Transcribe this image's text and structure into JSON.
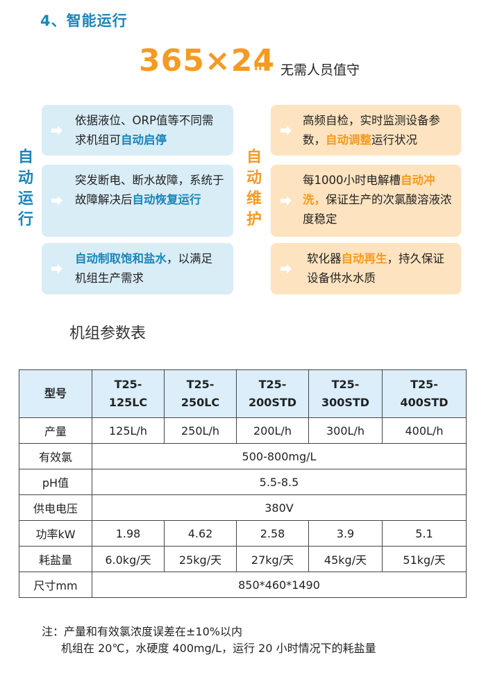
{
  "heading": "4、智能运行",
  "hero": {
    "number": "365×24",
    "unit": "h",
    "caption": "无需人员值守"
  },
  "auto_run": {
    "label_chars": [
      "自",
      "动",
      "运",
      "行"
    ],
    "items": [
      {
        "parts": [
          {
            "t": "依据液位、ORP值等不同需求机组可"
          },
          {
            "t": "自动启停",
            "h": true
          }
        ]
      },
      {
        "parts": [
          {
            "t": "突发断电、断水故障，系统于故障解决后"
          },
          {
            "t": "自动恢复运行",
            "h": true
          }
        ]
      },
      {
        "parts": [
          {
            "t": "自动制取饱和盐水",
            "h": true
          },
          {
            "t": "，以满足机组生产需求"
          }
        ]
      }
    ]
  },
  "auto_maintain": {
    "label_chars": [
      "自",
      "动",
      "维",
      "护"
    ],
    "items": [
      {
        "parts": [
          {
            "t": "高频自检，实时监测设备参数，"
          },
          {
            "t": "自动调整",
            "h": true
          },
          {
            "t": "运行状况"
          }
        ]
      },
      {
        "parts": [
          {
            "t": "每1000小时电解槽"
          },
          {
            "t": "自动冲洗，",
            "h": true
          },
          {
            "t": "保证生产的次氯酸溶液浓度稳定"
          }
        ]
      },
      {
        "parts": [
          {
            "t": "软化器"
          },
          {
            "t": "自动再生",
            "h": true
          },
          {
            "t": "，持久保证设备供水水质"
          }
        ]
      }
    ]
  },
  "table": {
    "title": "机组参数表",
    "header": [
      "型号",
      "T25-\n125LC",
      "T25-\n250LC",
      "T25-\n200STD",
      "T25-\n300STD",
      "T25-\n400STD"
    ],
    "rows": [
      {
        "label": "产量",
        "cells": [
          "125L/h",
          "250L/h",
          "200L/h",
          "300L/h",
          "400L/h"
        ]
      },
      {
        "label": "有效氯",
        "span": "500-800mg/L"
      },
      {
        "label": "pH值",
        "span": "5.5-8.5"
      },
      {
        "label": "供电电压",
        "span": "380V"
      },
      {
        "label": "功率kW",
        "cells": [
          "1.98",
          "4.62",
          "2.58",
          "3.9",
          "5.1"
        ]
      },
      {
        "label": "耗盐量",
        "cells": [
          "6.0kg/天",
          "25kg/天",
          "27kg/天",
          "45kg/天",
          "51kg/天"
        ]
      },
      {
        "label": "尺寸mm",
        "span": "850*460*1490"
      }
    ]
  },
  "notes": {
    "line1": "注：产量和有效氯浓度误差在±10%以内",
    "line2": "机组在 20℃，水硬度 400mg/L，运行 20 小时情况下的耗盐量"
  },
  "colors": {
    "blue_accent": "#1a86b8",
    "orange_accent": "#f59a22",
    "blue_box": "#d9edf7",
    "orange_box": "#fde3bf",
    "table_header": "#dbeefa"
  }
}
